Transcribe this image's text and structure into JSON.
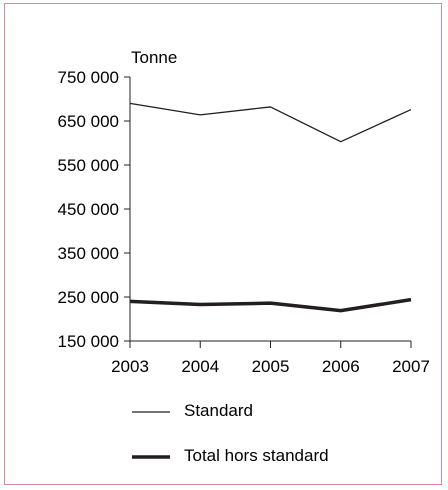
{
  "chart_data": {
    "type": "line",
    "ylabel": "Tonne",
    "x": [
      "2003",
      "2004",
      "2005",
      "2006",
      "2007"
    ],
    "ylim": [
      150000,
      750000
    ],
    "yticks": [
      150000,
      250000,
      350000,
      450000,
      550000,
      650000,
      750000
    ],
    "ytick_labels": [
      "150 000",
      "250 000",
      "350 000",
      "450 000",
      "550 000",
      "650 000",
      "750 000"
    ],
    "grid": false,
    "legend_placement": "bottom",
    "series": [
      {
        "name": "Standard",
        "values": [
          690000,
          664000,
          682000,
          603000,
          676000
        ],
        "color": "#231f20",
        "weight": "thin"
      },
      {
        "name": "Total hors standard",
        "values": [
          240000,
          233000,
          236000,
          219000,
          244000
        ],
        "color": "#231f20",
        "weight": "thick"
      }
    ]
  }
}
